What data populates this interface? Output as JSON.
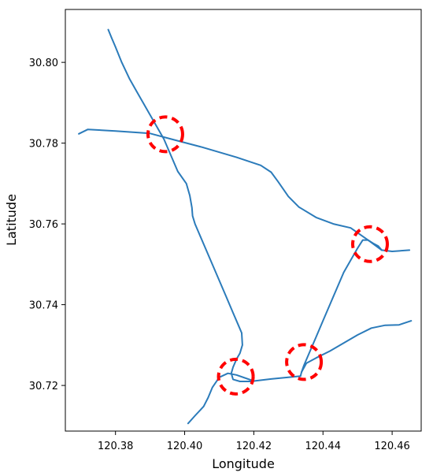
{
  "chart_data": {
    "type": "line",
    "title": "",
    "xlabel": "Longitude",
    "ylabel": "Latitude",
    "xlim": [
      120.3655,
      120.4684
    ],
    "ylim": [
      30.7087,
      30.8131
    ],
    "x_ticks": [
      120.38,
      120.4,
      120.42,
      120.44,
      120.46
    ],
    "x_tick_labels": [
      "120.38",
      "120.40",
      "120.42",
      "120.44",
      "120.46"
    ],
    "y_ticks": [
      30.72,
      30.74,
      30.76,
      30.78,
      30.8
    ],
    "y_tick_labels": [
      "30.72",
      "30.74",
      "30.76",
      "30.78",
      "30.80"
    ],
    "grid": false,
    "line_color": "#2b7bba",
    "circle_color": "#ff0000",
    "series": [
      {
        "x": [
          120.3779,
          120.3789,
          120.3799,
          120.3818,
          120.384,
          120.386,
          120.388,
          120.39,
          120.392,
          120.394,
          120.396,
          120.398,
          120.4005,
          120.4015,
          120.4021,
          120.4023,
          120.403,
          120.404,
          120.406,
          120.408,
          120.41,
          120.412,
          120.414,
          120.4155,
          120.4165,
          120.4167,
          120.416,
          120.415,
          120.414,
          120.4135,
          120.414,
          120.416,
          120.4195
        ],
        "y": [
          30.8081,
          30.806,
          30.804,
          30.8,
          30.796,
          30.793,
          30.79,
          30.787,
          30.784,
          30.781,
          30.777,
          30.773,
          30.77,
          30.767,
          30.764,
          30.762,
          30.76,
          30.758,
          30.754,
          30.75,
          30.746,
          30.742,
          30.738,
          30.735,
          30.733,
          30.73,
          30.728,
          30.7265,
          30.7245,
          30.723,
          30.7215,
          30.721,
          30.721
        ]
      },
      {
        "x": [
          120.3694,
          120.372,
          120.38,
          120.39,
          120.397,
          120.405,
          120.415,
          120.422,
          120.425,
          120.427,
          120.43,
          120.433,
          120.438,
          120.443,
          120.448,
          120.453,
          120.457,
          120.46,
          120.465
        ],
        "y": [
          30.7823,
          30.7834,
          30.783,
          30.7824,
          30.7808,
          30.779,
          30.7765,
          30.7745,
          30.7728,
          30.7705,
          30.7668,
          30.7642,
          30.7616,
          30.76,
          30.759,
          30.756,
          30.7535,
          30.7532,
          30.7535
        ]
      },
      {
        "x": [
          120.401,
          120.403,
          120.4055,
          120.4068,
          120.408,
          120.41,
          120.4125,
          120.415,
          120.42,
          120.425,
          120.43,
          120.4335
        ],
        "y": [
          30.7106,
          30.7125,
          30.7148,
          30.717,
          30.7195,
          30.722,
          30.723,
          30.7226,
          30.7211,
          30.7216,
          30.722,
          30.7223
        ]
      },
      {
        "x": [
          120.4335,
          120.4338,
          120.4345,
          120.436,
          120.438,
          120.44,
          120.442,
          120.444,
          120.446,
          120.448,
          120.45,
          120.4515,
          120.453,
          120.4545,
          120.456,
          120.457
        ],
        "y": [
          30.7223,
          30.7233,
          30.725,
          30.728,
          30.732,
          30.736,
          30.74,
          30.744,
          30.748,
          30.751,
          30.754,
          30.756,
          30.756,
          30.7552,
          30.7545,
          30.7535
        ]
      },
      {
        "x": [
          120.4338,
          120.4352,
          120.438,
          120.442,
          120.446,
          120.45,
          120.454,
          120.458,
          120.462,
          120.4655
        ],
        "y": [
          30.7233,
          30.7255,
          30.7268,
          30.7285,
          30.7305,
          30.7325,
          30.7342,
          30.7349,
          30.735,
          30.736
        ]
      }
    ],
    "circles": [
      {
        "x": 120.3944,
        "y": 30.7822
      },
      {
        "x": 120.4536,
        "y": 30.755
      },
      {
        "x": 120.4345,
        "y": 30.7258
      },
      {
        "x": 120.4148,
        "y": 30.7222
      }
    ]
  }
}
